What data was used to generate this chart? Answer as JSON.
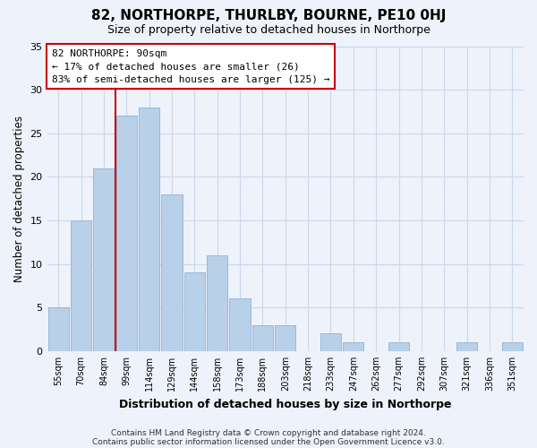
{
  "title": "82, NORTHORPE, THURLBY, BOURNE, PE10 0HJ",
  "subtitle": "Size of property relative to detached houses in Northorpe",
  "xlabel": "Distribution of detached houses by size in Northorpe",
  "ylabel": "Number of detached properties",
  "footer_line1": "Contains HM Land Registry data © Crown copyright and database right 2024.",
  "footer_line2": "Contains public sector information licensed under the Open Government Licence v3.0.",
  "bar_labels": [
    "55sqm",
    "70sqm",
    "84sqm",
    "99sqm",
    "114sqm",
    "129sqm",
    "144sqm",
    "158sqm",
    "173sqm",
    "188sqm",
    "203sqm",
    "218sqm",
    "233sqm",
    "247sqm",
    "262sqm",
    "277sqm",
    "292sqm",
    "307sqm",
    "321sqm",
    "336sqm",
    "351sqm"
  ],
  "bar_values": [
    5,
    15,
    21,
    27,
    28,
    18,
    9,
    11,
    6,
    3,
    3,
    0,
    2,
    1,
    0,
    1,
    0,
    0,
    1,
    0,
    1
  ],
  "bar_color": "#b8d0e8",
  "bar_edge_color": "#9ab8d8",
  "grid_color": "#c8d8ec",
  "background_color": "#eef2fa",
  "vline_color": "#cc0000",
  "annotation_title": "82 NORTHORPE: 90sqm",
  "annotation_line1": "← 17% of detached houses are smaller (26)",
  "annotation_line2": "83% of semi-detached houses are larger (125) →",
  "annotation_box_edge": "#cc0000",
  "ylim": [
    0,
    35
  ],
  "yticks": [
    0,
    5,
    10,
    15,
    20,
    25,
    30,
    35
  ]
}
